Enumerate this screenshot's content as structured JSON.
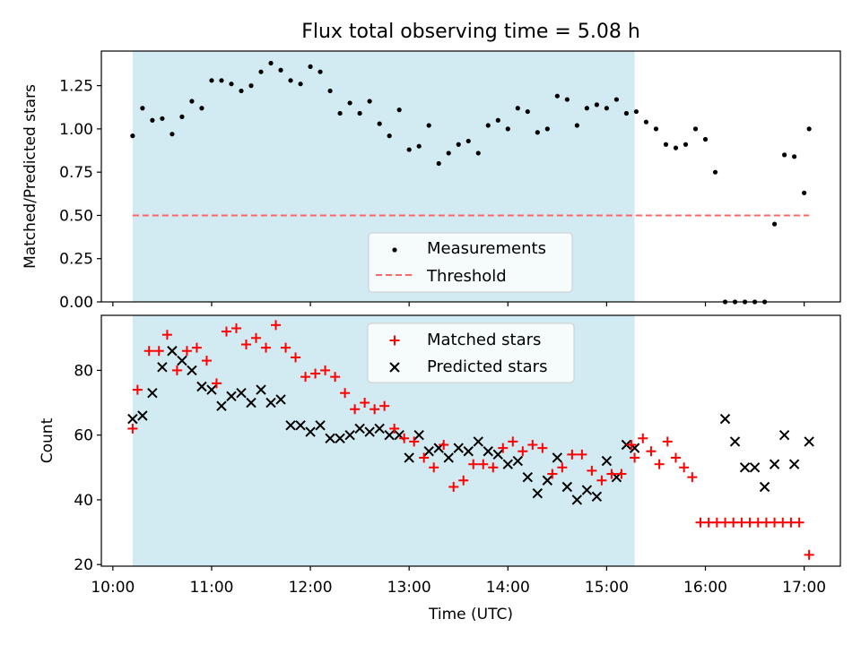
{
  "title": "Flux total observing time = 5.08 h",
  "colors": {
    "shade": "#add8e6",
    "matched": "#ff0000",
    "predicted": "#000000",
    "threshold": "#ff6666"
  },
  "chart_data": [
    {
      "type": "scatter",
      "ylabel": "Matched/Predicted stars",
      "ylim": [
        0,
        1.45
      ],
      "yticks": [
        "0.00",
        "0.25",
        "0.50",
        "0.75",
        "1.00",
        "1.25"
      ],
      "shaded_span": [
        "10:12",
        "15:17"
      ],
      "threshold": {
        "name": "Threshold",
        "value": 0.5,
        "x": [
          "10:12",
          "17:03"
        ]
      },
      "legend": {
        "placement": "lower-center",
        "entries": [
          "Measurements",
          "Threshold"
        ]
      },
      "series": [
        {
          "name": "Measurements",
          "x": [
            "10:12",
            "10:18",
            "10:24",
            "10:30",
            "10:36",
            "10:42",
            "10:48",
            "10:54",
            "11:00",
            "11:06",
            "11:12",
            "11:18",
            "11:24",
            "11:30",
            "11:36",
            "11:42",
            "11:48",
            "11:54",
            "12:00",
            "12:06",
            "12:12",
            "12:18",
            "12:24",
            "12:30",
            "12:36",
            "12:42",
            "12:48",
            "12:54",
            "13:00",
            "13:06",
            "13:12",
            "13:18",
            "13:24",
            "13:30",
            "13:36",
            "13:42",
            "13:48",
            "13:54",
            "14:00",
            "14:06",
            "14:12",
            "14:18",
            "14:24",
            "14:30",
            "14:36",
            "14:42",
            "14:48",
            "14:54",
            "15:00",
            "15:06",
            "15:12",
            "15:18",
            "15:24",
            "15:30",
            "15:36",
            "15:42",
            "15:48",
            "15:54",
            "16:00",
            "16:06",
            "16:12",
            "16:18",
            "16:24",
            "16:30",
            "16:36",
            "16:42",
            "16:48",
            "16:54",
            "17:00",
            "17:03"
          ],
          "y": [
            0.96,
            1.12,
            1.05,
            1.06,
            0.97,
            1.07,
            1.16,
            1.12,
            1.28,
            1.28,
            1.26,
            1.22,
            1.25,
            1.33,
            1.38,
            1.34,
            1.28,
            1.26,
            1.36,
            1.33,
            1.22,
            1.09,
            1.15,
            1.09,
            1.16,
            1.03,
            0.96,
            1.11,
            0.88,
            0.9,
            1.02,
            0.8,
            0.86,
            0.91,
            0.93,
            0.86,
            1.02,
            1.05,
            1.0,
            1.12,
            1.1,
            0.98,
            1.0,
            1.19,
            1.17,
            1.02,
            1.12,
            1.14,
            1.12,
            1.17,
            1.09,
            1.1,
            1.04,
            1.0,
            0.91,
            0.89,
            0.91,
            1.0,
            0.94,
            0.75,
            0.0,
            0.0,
            0.0,
            0.0,
            0.0,
            0.45,
            0.85,
            0.84,
            0.63,
            1.0
          ]
        }
      ]
    },
    {
      "type": "scatter",
      "xlabel": "Time (UTC)",
      "ylabel": "Count",
      "ylim": [
        19.5,
        97
      ],
      "yticks": [
        "20",
        "40",
        "60",
        "80"
      ],
      "xticks": [
        "10:00",
        "11:00",
        "12:00",
        "13:00",
        "14:00",
        "15:00",
        "16:00",
        "17:00"
      ],
      "shaded_span": [
        "10:12",
        "15:17"
      ],
      "legend": {
        "placement": "top-center",
        "entries": [
          "Matched stars",
          "Predicted stars"
        ]
      },
      "series": [
        {
          "name": "Matched stars",
          "x": [
            "10:12",
            "10:15",
            "10:22",
            "10:28",
            "10:33",
            "10:39",
            "10:45",
            "10:51",
            "10:57",
            "11:03",
            "11:09",
            "11:15",
            "11:21",
            "11:27",
            "11:33",
            "11:39",
            "11:45",
            "11:51",
            "11:57",
            "12:03",
            "12:09",
            "12:15",
            "12:21",
            "12:27",
            "12:33",
            "12:39",
            "12:45",
            "12:51",
            "12:57",
            "13:03",
            "13:09",
            "13:15",
            "13:21",
            "13:27",
            "13:33",
            "13:39",
            "13:45",
            "13:51",
            "13:57",
            "14:03",
            "14:09",
            "14:15",
            "14:21",
            "14:27",
            "14:33",
            "14:39",
            "14:45",
            "14:51",
            "14:57",
            "15:03",
            "15:09",
            "15:15",
            "15:17",
            "15:22",
            "15:27",
            "15:32",
            "15:37",
            "15:42",
            "15:47",
            "15:52",
            "15:57",
            "16:02",
            "16:07",
            "16:12",
            "16:17",
            "16:22",
            "16:27",
            "16:32",
            "16:37",
            "16:42",
            "16:47",
            "16:52",
            "16:57",
            "17:03"
          ],
          "y": [
            62,
            74,
            86,
            86,
            91,
            80,
            86,
            87,
            83,
            76,
            92,
            93,
            88,
            90,
            87,
            94,
            87,
            84,
            78,
            79,
            80,
            78,
            73,
            68,
            70,
            68,
            69,
            62,
            59,
            58,
            53,
            50,
            57,
            44,
            46,
            51,
            51,
            50,
            56,
            58,
            55,
            57,
            56,
            48,
            50,
            54,
            54,
            49,
            46,
            48,
            48,
            57,
            53,
            59,
            55,
            51,
            58,
            53,
            50,
            47,
            33,
            33,
            33,
            33,
            33,
            33,
            33,
            33,
            33,
            33,
            33,
            33,
            33,
            23
          ]
        },
        {
          "name": "Predicted stars",
          "x": [
            "10:12",
            "10:18",
            "10:24",
            "10:30",
            "10:36",
            "10:42",
            "10:48",
            "10:54",
            "11:00",
            "11:06",
            "11:12",
            "11:18",
            "11:24",
            "11:30",
            "11:36",
            "11:42",
            "11:48",
            "11:54",
            "12:00",
            "12:06",
            "12:12",
            "12:18",
            "12:24",
            "12:30",
            "12:36",
            "12:42",
            "12:48",
            "12:54",
            "13:00",
            "13:06",
            "13:12",
            "13:18",
            "13:24",
            "13:30",
            "13:36",
            "13:42",
            "13:48",
            "13:54",
            "14:00",
            "14:06",
            "14:12",
            "14:18",
            "14:24",
            "14:30",
            "14:36",
            "14:42",
            "14:48",
            "14:54",
            "15:00",
            "15:06",
            "15:12",
            "15:17",
            "16:12",
            "16:18",
            "16:24",
            "16:30",
            "16:36",
            "16:42",
            "16:48",
            "16:54",
            "17:03"
          ],
          "y": [
            65,
            66,
            73,
            81,
            86,
            83,
            80,
            75,
            74,
            69,
            72,
            73,
            70,
            74,
            70,
            71,
            63,
            63,
            61,
            63,
            59,
            59,
            60,
            62,
            61,
            62,
            60,
            60,
            53,
            60,
            55,
            56,
            53,
            56,
            55,
            58,
            55,
            54,
            51,
            52,
            47,
            42,
            46,
            53,
            44,
            40,
            43,
            41,
            52,
            47,
            57,
            56,
            65,
            58,
            50,
            50,
            44,
            51,
            60,
            51,
            58
          ]
        }
      ]
    }
  ]
}
